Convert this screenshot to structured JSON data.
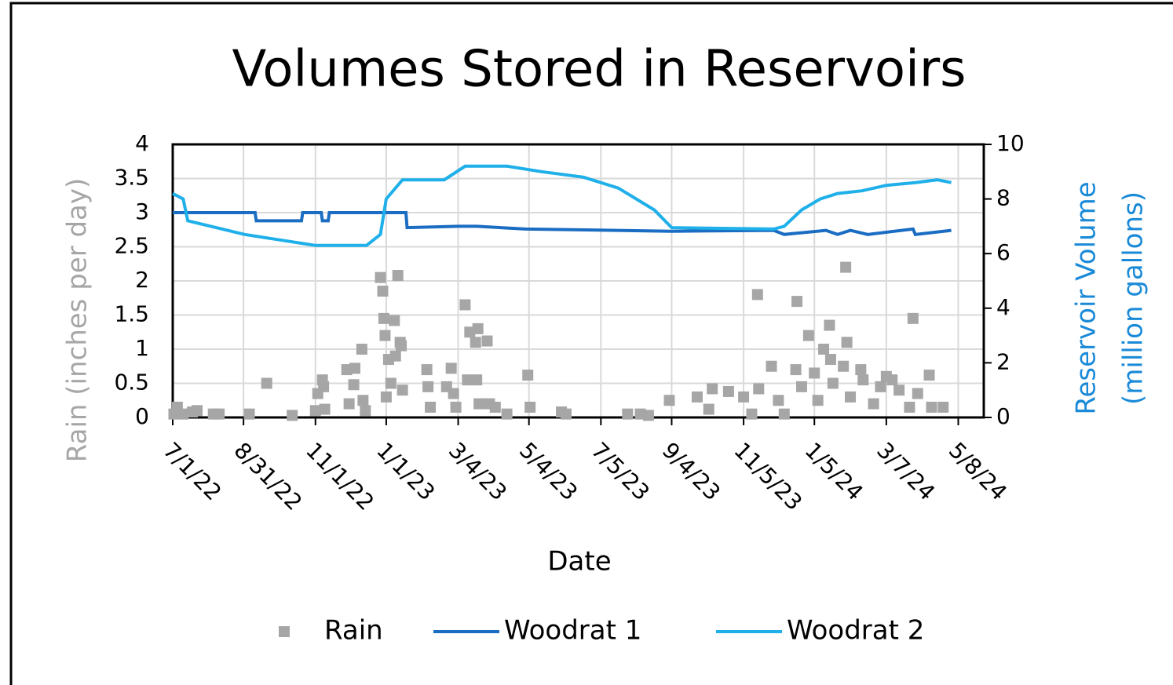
{
  "chart_data": {
    "type": "combo",
    "title": "Volumes Stored in Reservoirs",
    "xlabel": "Date",
    "ylabel": "Rain (inches per day)",
    "y2label": [
      "Reservoir Volume",
      "(million gallons)"
    ],
    "xlim": [
      "2022-07-01",
      "2024-05-30"
    ],
    "xticks": [
      {
        "value": "2022-07-01",
        "label": "7/1/22"
      },
      {
        "value": "2022-08-31",
        "label": "8/31/22"
      },
      {
        "value": "2022-11-01",
        "label": "11/1/22"
      },
      {
        "value": "2023-01-01",
        "label": "1/1/23"
      },
      {
        "value": "2023-03-04",
        "label": "3/4/23"
      },
      {
        "value": "2023-05-04",
        "label": "5/4/23"
      },
      {
        "value": "2023-07-05",
        "label": "7/5/23"
      },
      {
        "value": "2023-09-04",
        "label": "9/4/23"
      },
      {
        "value": "2023-11-05",
        "label": "11/5/23"
      },
      {
        "value": "2024-01-05",
        "label": "1/5/24"
      },
      {
        "value": "2024-03-07",
        "label": "3/7/24"
      },
      {
        "value": "2024-05-08",
        "label": "5/8/24"
      }
    ],
    "ylim": [
      0,
      4
    ],
    "yticks": [
      0,
      0.5,
      1,
      1.5,
      2,
      2.5,
      3,
      3.5,
      4
    ],
    "y2lim": [
      0,
      10
    ],
    "y2ticks": [
      0,
      2,
      4,
      6,
      8,
      10
    ],
    "grid": true,
    "legend": "bottom",
    "series": [
      {
        "name": "Rain",
        "kind": "scatter",
        "color": "#a6a6a6",
        "x": [
          "2022-07-02",
          "2022-07-05",
          "2022-07-10",
          "2022-07-18",
          "2022-07-22",
          "2022-08-05",
          "2022-08-10",
          "2022-09-05",
          "2022-09-20",
          "2022-10-12",
          "2022-11-01",
          "2022-11-03",
          "2022-11-07",
          "2022-11-08",
          "2022-11-09",
          "2022-11-28",
          "2022-11-30",
          "2022-12-04",
          "2022-12-05",
          "2022-12-11",
          "2022-12-12",
          "2022-12-14",
          "2022-12-27",
          "2022-12-29",
          "2022-12-30",
          "2022-12-31",
          "2023-01-01",
          "2023-01-03",
          "2023-01-05",
          "2023-01-08",
          "2023-01-09",
          "2023-01-11",
          "2023-01-13",
          "2023-01-14",
          "2023-01-15",
          "2023-02-05",
          "2023-02-06",
          "2023-02-08",
          "2023-02-22",
          "2023-02-26",
          "2023-02-28",
          "2023-03-02",
          "2023-03-10",
          "2023-03-12",
          "2023-03-14",
          "2023-03-19",
          "2023-03-20",
          "2023-03-21",
          "2023-03-22",
          "2023-03-29",
          "2023-03-31",
          "2023-04-05",
          "2023-04-15",
          "2023-05-03",
          "2023-05-05",
          "2023-06-01",
          "2023-06-05",
          "2023-07-28",
          "2023-08-08",
          "2023-08-15",
          "2023-09-02",
          "2023-09-26",
          "2023-10-06",
          "2023-10-09",
          "2023-10-23",
          "2023-11-05",
          "2023-11-12",
          "2023-11-17",
          "2023-11-18",
          "2023-11-29",
          "2023-12-05",
          "2023-12-10",
          "2023-12-20",
          "2023-12-21",
          "2023-12-25",
          "2023-12-31",
          "2024-01-05",
          "2024-01-08",
          "2024-01-13",
          "2024-01-18",
          "2024-01-19",
          "2024-01-21",
          "2024-01-30",
          "2024-02-01",
          "2024-02-02",
          "2024-02-05",
          "2024-02-14",
          "2024-02-16",
          "2024-02-25",
          "2024-03-02",
          "2024-03-07",
          "2024-03-12",
          "2024-03-18",
          "2024-03-27",
          "2024-03-30",
          "2024-04-03",
          "2024-04-13",
          "2024-04-15",
          "2024-04-25"
        ],
        "values": [
          0.05,
          0.15,
          0.05,
          0.08,
          0.1,
          0.05,
          0.05,
          0.05,
          0.5,
          0.03,
          0.1,
          0.35,
          0.55,
          0.45,
          0.12,
          0.7,
          0.2,
          0.48,
          0.72,
          1.0,
          0.25,
          0.1,
          2.05,
          1.85,
          1.45,
          1.2,
          0.3,
          0.85,
          0.5,
          1.42,
          0.9,
          2.08,
          1.1,
          1.05,
          0.4,
          0.7,
          0.45,
          0.15,
          0.45,
          0.72,
          0.35,
          0.15,
          1.65,
          0.55,
          1.25,
          1.1,
          0.55,
          1.3,
          0.2,
          1.12,
          0.2,
          0.15,
          0.05,
          0.62,
          0.15,
          0.08,
          0.05,
          0.05,
          0.05,
          0.03,
          0.25,
          0.3,
          0.12,
          0.42,
          0.38,
          0.3,
          0.05,
          1.8,
          0.42,
          0.75,
          0.25,
          0.05,
          0.7,
          1.7,
          0.45,
          1.2,
          0.65,
          0.25,
          1.0,
          1.35,
          0.85,
          0.5,
          0.75,
          2.2,
          1.1,
          0.3,
          0.7,
          0.55,
          0.2,
          0.45,
          0.6,
          0.55,
          0.4,
          0.15,
          1.45,
          0.35,
          0.62,
          0.15,
          0.15
        ]
      },
      {
        "name": "Woodrat 1",
        "kind": "line",
        "axis": "y2",
        "color": "#1a6dc2",
        "x": [
          "2022-07-01",
          "2022-09-10",
          "2022-09-11",
          "2022-10-20",
          "2022-10-21",
          "2022-11-06",
          "2022-11-07",
          "2022-11-12",
          "2022-11-13",
          "2023-01-18",
          "2023-01-19",
          "2023-03-04",
          "2023-03-20",
          "2023-05-01",
          "2023-09-04",
          "2023-12-01",
          "2023-12-10",
          "2024-01-15",
          "2024-01-25",
          "2024-02-05",
          "2024-02-20",
          "2024-03-30",
          "2024-04-01",
          "2024-05-02"
        ],
        "values": [
          7.5,
          7.5,
          7.2,
          7.2,
          7.5,
          7.5,
          7.2,
          7.2,
          7.5,
          7.5,
          6.95,
          7.0,
          7.0,
          6.9,
          6.82,
          6.85,
          6.7,
          6.85,
          6.7,
          6.85,
          6.7,
          6.9,
          6.7,
          6.85
        ]
      },
      {
        "name": "Woodrat 2",
        "kind": "line",
        "axis": "y2",
        "color": "#1fb0ea",
        "x": [
          "2022-07-01",
          "2022-07-10",
          "2022-07-14",
          "2022-09-01",
          "2022-11-01",
          "2022-12-15",
          "2022-12-27",
          "2023-01-01",
          "2023-01-15",
          "2023-02-20",
          "2023-03-10",
          "2023-04-15",
          "2023-05-15",
          "2023-06-20",
          "2023-07-20",
          "2023-08-20",
          "2023-09-04",
          "2023-12-01",
          "2023-12-10",
          "2023-12-25",
          "2024-01-10",
          "2024-01-25",
          "2024-02-15",
          "2024-03-07",
          "2024-04-01",
          "2024-04-20",
          "2024-05-02"
        ],
        "values": [
          8.2,
          8.0,
          7.2,
          6.7,
          6.3,
          6.3,
          6.7,
          8.0,
          8.7,
          8.7,
          9.2,
          9.2,
          9.0,
          8.8,
          8.4,
          7.6,
          6.95,
          6.9,
          7.0,
          7.6,
          8.0,
          8.2,
          8.3,
          8.5,
          8.6,
          8.7,
          8.6
        ]
      }
    ]
  }
}
